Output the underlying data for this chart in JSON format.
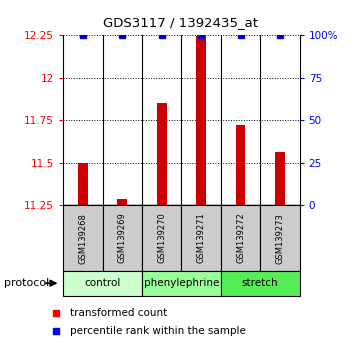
{
  "title": "GDS3117 / 1392435_at",
  "samples": [
    "GSM139268",
    "GSM139269",
    "GSM139270",
    "GSM139271",
    "GSM139272",
    "GSM139273"
  ],
  "red_values": [
    11.5,
    11.285,
    11.855,
    12.245,
    11.72,
    11.565
  ],
  "blue_values": [
    100,
    100,
    100,
    100,
    100,
    100
  ],
  "ylim_left": [
    11.25,
    12.25
  ],
  "ylim_right": [
    0,
    100
  ],
  "yticks_left": [
    11.25,
    11.5,
    11.75,
    12.0,
    12.25
  ],
  "yticks_right": [
    0,
    25,
    50,
    75,
    100
  ],
  "ytick_labels_left": [
    "11.25",
    "11.5",
    "11.75",
    "12",
    "12.25"
  ],
  "ytick_labels_right": [
    "0",
    "25",
    "50",
    "75",
    "100%"
  ],
  "groups": [
    {
      "label": "control",
      "start": 0,
      "end": 2,
      "color": "#ccffcc"
    },
    {
      "label": "phenylephrine",
      "start": 2,
      "end": 4,
      "color": "#99ff99"
    },
    {
      "label": "stretch",
      "start": 4,
      "end": 6,
      "color": "#55ee55"
    }
  ],
  "bar_color": "#cc0000",
  "dot_color": "#0000cc",
  "bar_bottom": 11.25,
  "legend_red_label": "transformed count",
  "legend_blue_label": "percentile rank within the sample",
  "protocol_label": "protocol"
}
